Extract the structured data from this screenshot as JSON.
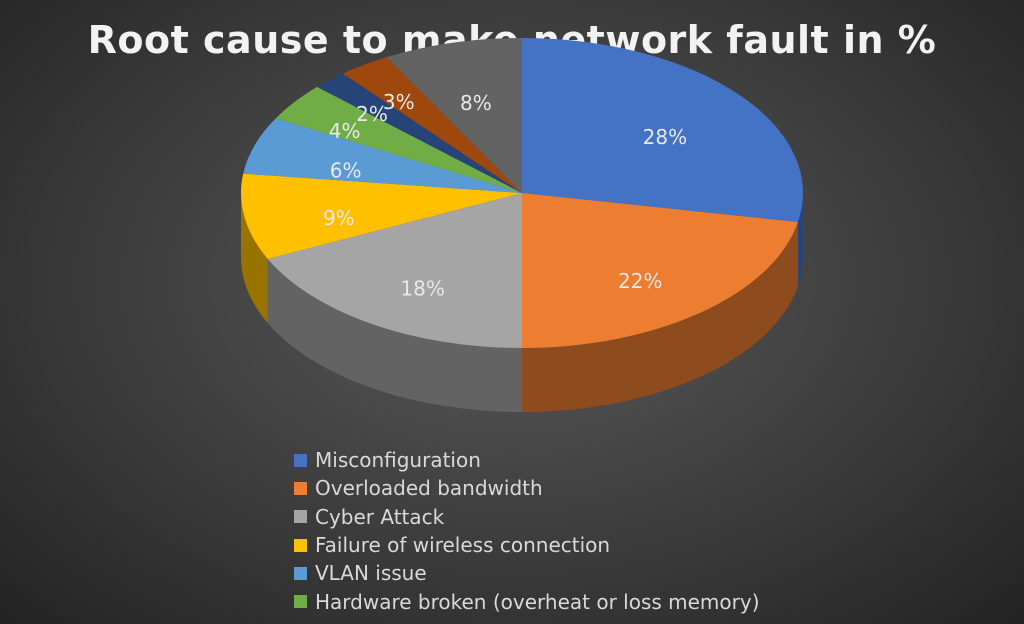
{
  "chart_data": {
    "type": "pie",
    "style": "3d",
    "title": "Root cause to make network fault in %",
    "slices": [
      {
        "name": "Misconfiguration",
        "value": 28,
        "label": "28%",
        "color": "#4472c4"
      },
      {
        "name": "Overloaded bandwidth",
        "value": 22,
        "label": "22%",
        "color": "#ed7d31"
      },
      {
        "name": "Cyber Attack",
        "value": 18,
        "label": "18%",
        "color": "#a5a5a5"
      },
      {
        "name": "Failure of wireless connection",
        "value": 9,
        "label": "9%",
        "color": "#ffc000"
      },
      {
        "name": "VLAN issue",
        "value": 6,
        "label": "6%",
        "color": "#5b9bd5"
      },
      {
        "name": "Hardware broken (overheat or loss memory)",
        "value": 4,
        "label": "4%",
        "color": "#70ad47"
      },
      {
        "name": "",
        "value": 2,
        "label": "2%",
        "color": "#264478"
      },
      {
        "name": "",
        "value": 3,
        "label": "3%",
        "color": "#9e480e"
      },
      {
        "name": "",
        "value": 8,
        "label": "8%",
        "color": "#636363"
      }
    ],
    "legend": {
      "position": "bottom",
      "entries": [
        "Misconfiguration",
        "Overloaded bandwidth",
        "Cyber Attack",
        "Failure of wireless connection",
        "VLAN issue",
        "Hardware broken (overheat or loss memory)"
      ]
    }
  }
}
